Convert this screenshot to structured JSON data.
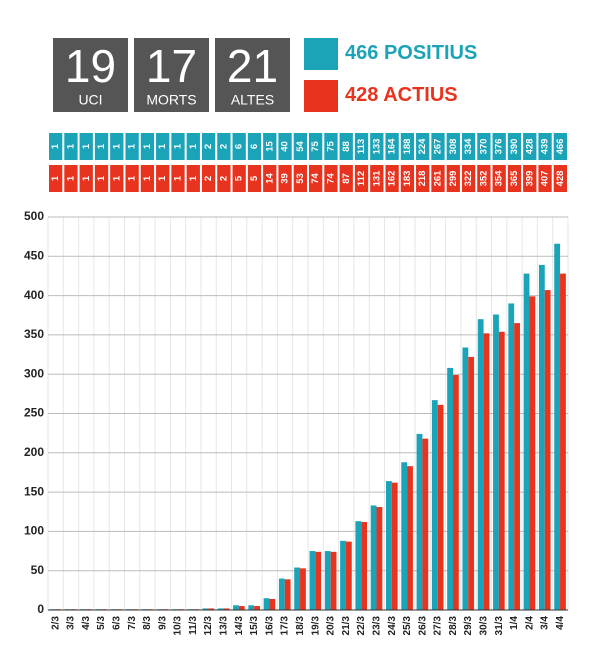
{
  "stats": [
    {
      "value": "19",
      "label": "UCI"
    },
    {
      "value": "17",
      "label": "MORTS"
    },
    {
      "value": "21",
      "label": "ALTES"
    }
  ],
  "chart_data": {
    "type": "bar",
    "categories": [
      "2/3",
      "3/3",
      "4/3",
      "5/3",
      "6/3",
      "7/3",
      "8/3",
      "9/3",
      "10/3",
      "11/3",
      "12/3",
      "13/3",
      "14/3",
      "15/3",
      "16/3",
      "17/3",
      "18/3",
      "19/3",
      "20/3",
      "21/3",
      "22/3",
      "23/3",
      "24/3",
      "25/3",
      "26/3",
      "27/3",
      "28/3",
      "29/3",
      "30/3",
      "31/3",
      "1/4",
      "2/4",
      "3/4",
      "4/4"
    ],
    "series": [
      {
        "name": "POSITIUS",
        "color": "#1ba3b8",
        "values": [
          1,
          1,
          1,
          1,
          1,
          1,
          1,
          1,
          1,
          1,
          2,
          2,
          6,
          6,
          15,
          40,
          54,
          75,
          75,
          88,
          113,
          133,
          164,
          188,
          224,
          267,
          308,
          334,
          370,
          376,
          390,
          428,
          439,
          466
        ]
      },
      {
        "name": "ACTIUS",
        "color": "#e8331e",
        "values": [
          1,
          1,
          1,
          1,
          1,
          1,
          1,
          1,
          1,
          1,
          2,
          2,
          5,
          5,
          14,
          39,
          53,
          74,
          74,
          87,
          112,
          131,
          162,
          183,
          218,
          261,
          299,
          322,
          352,
          354,
          365,
          399,
          407,
          428
        ]
      }
    ],
    "ylim": [
      0,
      500
    ],
    "yticks": [
      0,
      50,
      100,
      150,
      200,
      250,
      300,
      350,
      400,
      450,
      500
    ],
    "grid": true
  }
}
